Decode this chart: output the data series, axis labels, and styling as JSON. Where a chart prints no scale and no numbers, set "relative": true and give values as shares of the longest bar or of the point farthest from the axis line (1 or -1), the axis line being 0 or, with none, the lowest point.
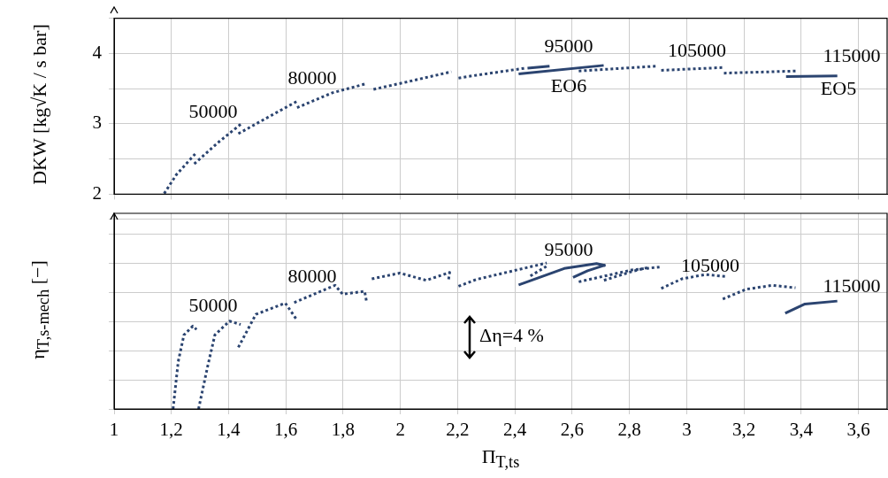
{
  "chart_data": [
    {
      "type": "line",
      "ylabel": "DKW [kg√K / s bar]",
      "xlim": [
        1,
        3.7
      ],
      "ylim": [
        2,
        4.5
      ],
      "xticks": [
        {
          "value": 1,
          "label": null
        },
        {
          "value": 1.2,
          "label": null
        },
        {
          "value": 1.4,
          "label": null
        },
        {
          "value": 1.6,
          "label": null
        },
        {
          "value": 1.8,
          "label": null
        },
        {
          "value": 2,
          "label": null
        },
        {
          "value": 2.2,
          "label": null
        },
        {
          "value": 2.4,
          "label": null
        },
        {
          "value": 2.6,
          "label": null
        },
        {
          "value": 2.8,
          "label": null
        },
        {
          "value": 3,
          "label": null
        },
        {
          "value": 3.2,
          "label": null
        },
        {
          "value": 3.4,
          "label": null
        },
        {
          "value": 3.6,
          "label": null
        }
      ],
      "yticks": [
        2,
        {
          "value": 2.5,
          "label": null
        },
        3,
        {
          "value": 3.5,
          "label": null
        },
        4,
        {
          "value": 4.5,
          "label": null
        }
      ],
      "tick_labels": "y",
      "grid": true,
      "legend": false,
      "marker": "none",
      "series": [
        {
          "color": "#2b4470",
          "line_style": "dotted",
          "x": [
            1.175,
            1.218,
            1.285
          ],
          "values": [
            2.01,
            2.28,
            2.58
          ]
        },
        {
          "color": "#2b4470",
          "line_style": "dotted",
          "x": [
            1.28,
            1.362,
            1.444
          ],
          "values": [
            2.43,
            2.73,
            3.0
          ]
        },
        {
          "color": "#2b4470",
          "line_style": "dotted",
          "x": [
            1.434,
            1.536,
            1.639
          ],
          "values": [
            2.86,
            3.09,
            3.32
          ]
        },
        {
          "color": "#2b4470",
          "line_style": "dotted",
          "x": [
            1.639,
            1.762,
            1.88
          ],
          "values": [
            3.23,
            3.44,
            3.57
          ]
        },
        {
          "color": "#2b4470",
          "line_style": "dotted",
          "x": [
            1.906,
            2.039,
            2.178
          ],
          "values": [
            3.49,
            3.61,
            3.74
          ]
        },
        {
          "color": "#2b4470",
          "line_style": "dotted",
          "x": [
            2.203,
            2.265,
            2.434
          ],
          "values": [
            3.65,
            3.69,
            3.79
          ]
        },
        {
          "color": "#2b4470",
          "line_style": "solid",
          "x": [
            2.444,
            2.521
          ],
          "values": [
            3.79,
            3.82
          ]
        },
        {
          "color": "#2b4470",
          "line_style": "solid",
          "x": [
            2.413,
            2.71
          ],
          "values": [
            3.71,
            3.83
          ]
        },
        {
          "color": "#2b4470",
          "line_style": "dotted",
          "x": [
            2.623,
            2.895
          ],
          "values": [
            3.75,
            3.82
          ]
        },
        {
          "color": "#2b4470",
          "line_style": "dotted",
          "x": [
            2.911,
            3.13
          ],
          "values": [
            3.76,
            3.8
          ]
        },
        {
          "color": "#2b4470",
          "line_style": "dotted",
          "x": [
            3.13,
            3.382
          ],
          "values": [
            3.72,
            3.75
          ]
        },
        {
          "color": "#2b4470",
          "line_style": "solid",
          "x": [
            3.347,
            3.526
          ],
          "values": [
            3.67,
            3.68
          ]
        }
      ],
      "annotations": [
        "50000",
        "80000",
        "95000",
        "EO6",
        "105000",
        "115000",
        "EO5"
      ]
    },
    {
      "type": "line",
      "ylabel": "η$_{T,s-mech}$ [−]",
      "xlabel": "Π$_{T,ts}$",
      "relative": true,
      "xlim": [
        1,
        3.7
      ],
      "xticks": [
        1,
        {
          "value": 1.2,
          "label": "1,2"
        },
        {
          "value": 1.4,
          "label": "1,4"
        },
        {
          "value": 1.6,
          "label": "1,6"
        },
        {
          "value": 1.8,
          "label": "1,8"
        },
        2,
        {
          "value": 2.2,
          "label": "2,2"
        },
        {
          "value": 2.4,
          "label": "2,4"
        },
        {
          "value": 2.6,
          "label": "2,6"
        },
        {
          "value": 2.8,
          "label": "2,8"
        },
        3,
        {
          "value": 3.2,
          "label": "3,2"
        },
        {
          "value": 3.4,
          "label": "3,4"
        },
        {
          "value": 3.6,
          "label": "3,6"
        }
      ],
      "tick_labels": "x",
      "grid": true,
      "legend": false,
      "marker": "none",
      "series": [
        {
          "color": "#2b4470",
          "line_style": "dotted",
          "x": [
            1.206,
            1.224,
            1.244,
            1.275,
            1.288
          ],
          "values": [
            0,
            0.325,
            0.507,
            0.568,
            0.544
          ]
        },
        {
          "color": "#2b4470",
          "line_style": "dotted",
          "x": [
            1.295,
            1.326,
            1.352,
            1.403,
            1.442
          ],
          "values": [
            0,
            0.285,
            0.507,
            0.602,
            0.578
          ]
        },
        {
          "color": "#2b4470",
          "line_style": "dotted",
          "x": [
            1.434,
            1.495,
            1.598,
            1.639
          ],
          "values": [
            0.422,
            0.648,
            0.725,
            0.608
          ]
        },
        {
          "color": "#2b4470",
          "line_style": "dotted",
          "x": [
            1.629,
            1.772,
            1.798,
            1.875,
            1.882
          ],
          "values": [
            0.729,
            0.847,
            0.786,
            0.806,
            0.733
          ]
        },
        {
          "color": "#2b4470",
          "line_style": "dotted",
          "x": [
            1.9,
            1.998,
            2.09,
            2.172,
            2.167
          ],
          "values": [
            0.891,
            0.931,
            0.881,
            0.935,
            0.871
          ]
        },
        {
          "color": "#2b4470",
          "line_style": "dotted",
          "x": [
            2.203,
            2.265,
            2.511
          ],
          "values": [
            0.84,
            0.887,
            1
          ]
        },
        {
          "color": "#2b4470",
          "line_style": "dotted",
          "x": [
            2.454,
            2.515
          ],
          "values": [
            0.911,
            0.982
          ]
        },
        {
          "color": "#2b4470",
          "line_style": "solid",
          "x": [
            2.413,
            2.572,
            2.685,
            2.716
          ],
          "values": [
            0.85,
            0.962,
            0.996,
            0.982
          ]
        },
        {
          "color": "#2b4470",
          "line_style": "solid",
          "x": [
            2.603,
            2.654,
            2.716
          ],
          "values": [
            0.901,
            0.947,
            0.986
          ]
        },
        {
          "color": "#2b4470",
          "line_style": "dotted",
          "x": [
            2.623,
            2.808,
            2.905
          ],
          "values": [
            0.871,
            0.952,
            0.972
          ]
        },
        {
          "color": "#2b4470",
          "line_style": "dotted",
          "x": [
            2.711,
            2.808,
            2.866
          ],
          "values": [
            0.881,
            0.941,
            0.97
          ]
        },
        {
          "color": "#2b4470",
          "line_style": "dotted",
          "x": [
            2.911,
            2.983,
            3.065,
            3.137
          ],
          "values": [
            0.826,
            0.891,
            0.921,
            0.907
          ]
        },
        {
          "color": "#2b4470",
          "line_style": "dotted",
          "x": [
            3.126,
            3.208,
            3.3,
            3.38
          ],
          "values": [
            0.753,
            0.82,
            0.847,
            0.83
          ]
        },
        {
          "color": "#2b4470",
          "line_style": "solid",
          "x": [
            3.344,
            3.413,
            3.526
          ],
          "values": [
            0.655,
            0.719,
            0.739
          ]
        }
      ],
      "annotations": [
        "50000",
        "80000",
        "95000",
        "105000",
        "115000",
        "Δη=4 %"
      ]
    }
  ]
}
